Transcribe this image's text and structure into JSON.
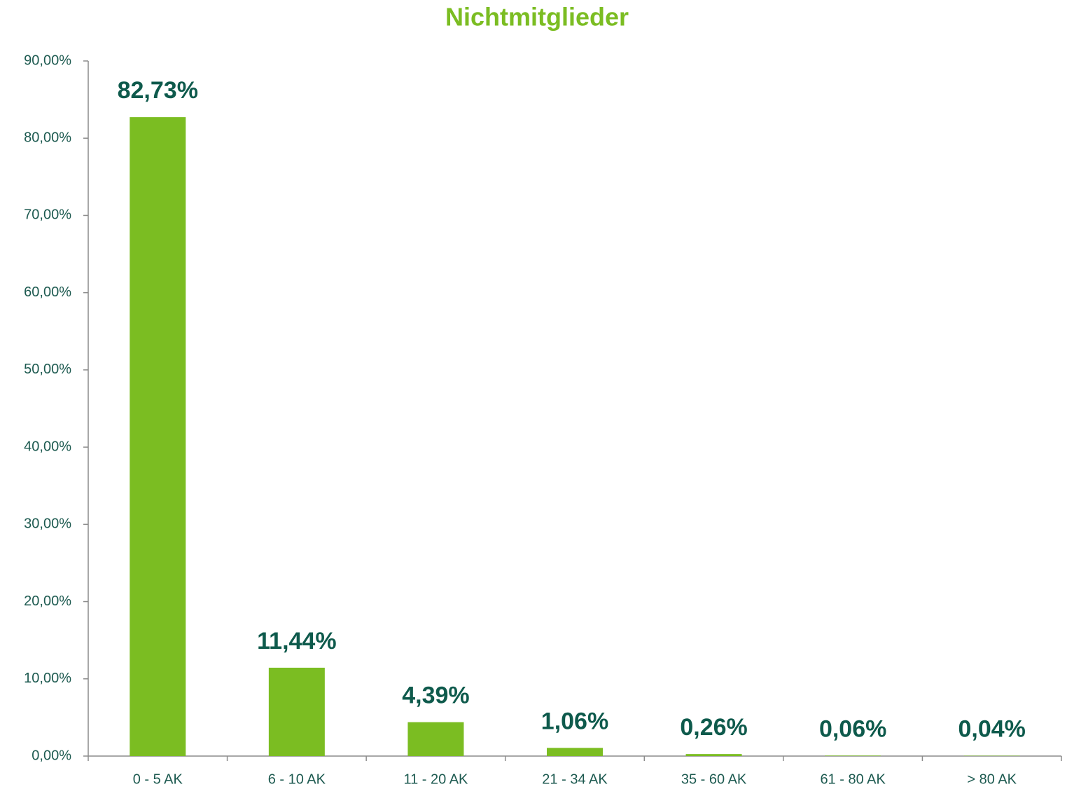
{
  "chart_data": {
    "type": "bar",
    "title": "Nichtmitglieder",
    "categories": [
      "0 - 5 AK",
      "6 - 10 AK",
      "11 - 20 AK",
      "21 - 34 AK",
      "35 - 60 AK",
      "61 - 80 AK",
      "> 80 AK"
    ],
    "values": [
      82.73,
      11.44,
      4.39,
      1.06,
      0.26,
      0.06,
      0.04
    ],
    "value_labels": [
      "82,73%",
      "11,44%",
      "4,39%",
      "1,06%",
      "0,26%",
      "0,06%",
      "0,04%"
    ],
    "color": "#7bbd22",
    "ylim": [
      0,
      90
    ],
    "yticks": [
      {
        "value": 0,
        "label": "0,00%"
      },
      {
        "value": 10,
        "label": "10,00%"
      },
      {
        "value": 20,
        "label": "20,00%"
      },
      {
        "value": 30,
        "label": "30,00%"
      },
      {
        "value": 40,
        "label": "40,00%"
      },
      {
        "value": 50,
        "label": "50,00%"
      },
      {
        "value": 60,
        "label": "60,00%"
      },
      {
        "value": 70,
        "label": "70,00%"
      },
      {
        "value": 80,
        "label": "80,00%"
      },
      {
        "value": 90,
        "label": "90,00%"
      }
    ],
    "grid": false
  }
}
